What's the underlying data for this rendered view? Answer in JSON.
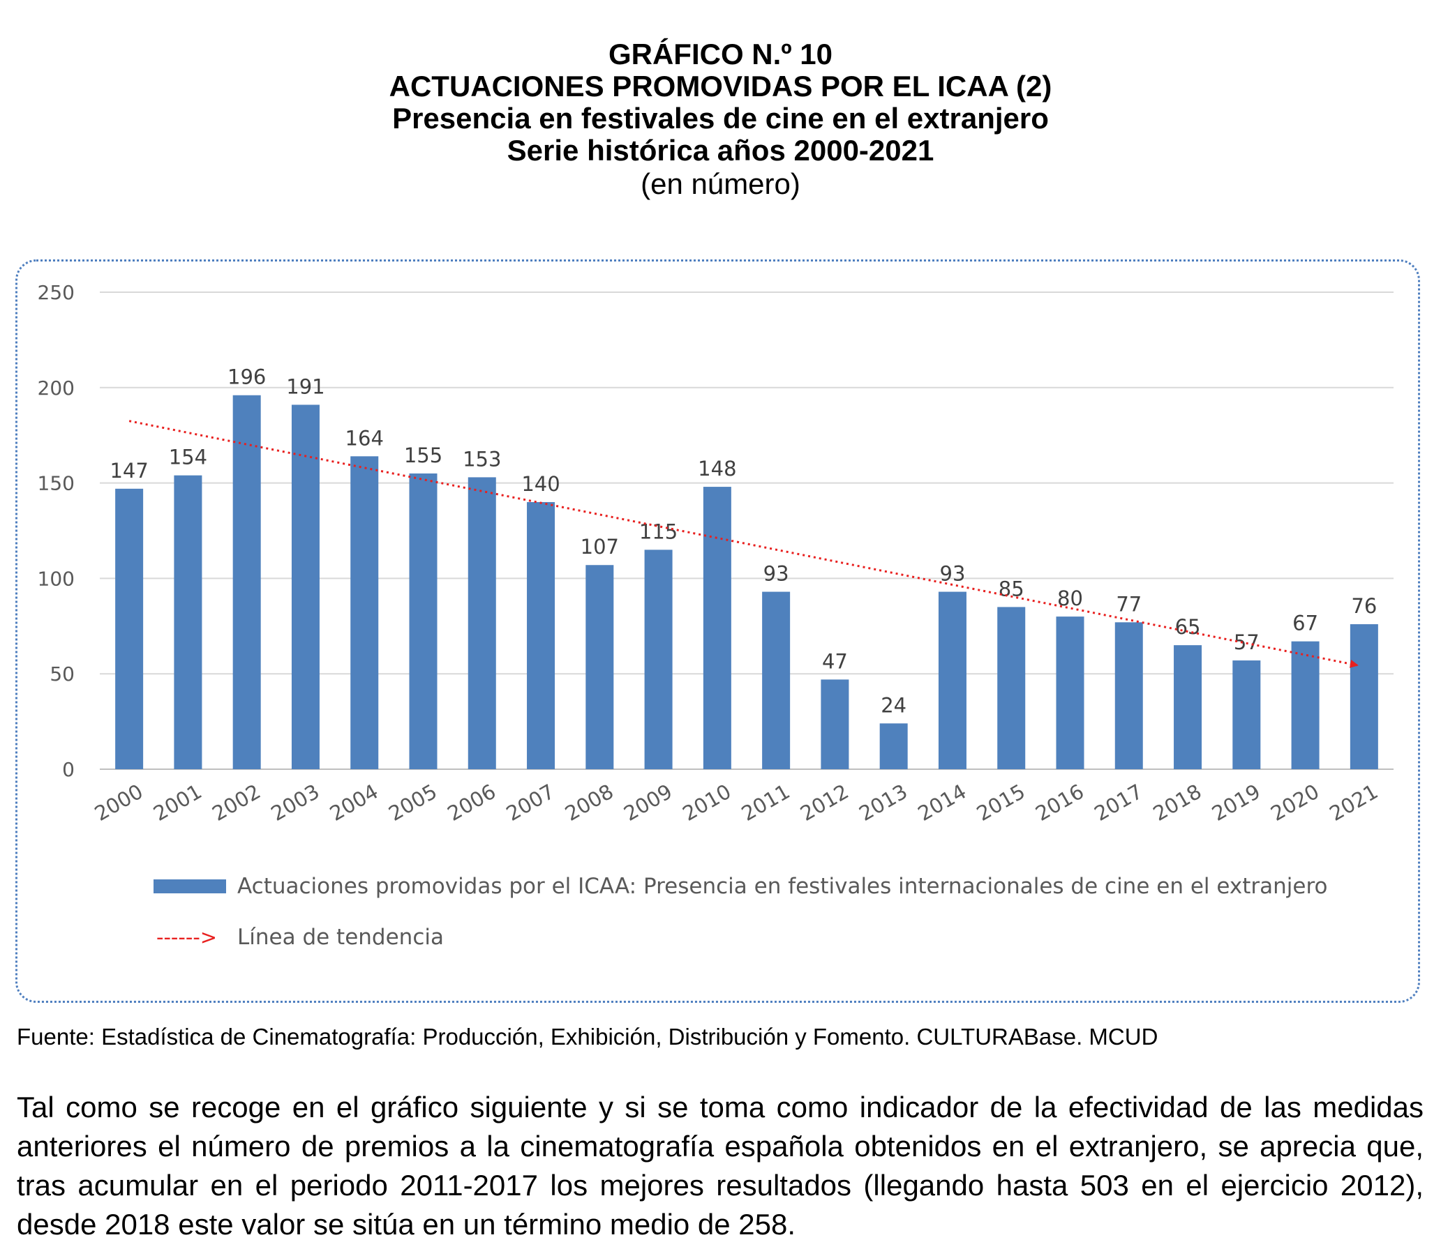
{
  "header": {
    "line1": "GRÁFICO N.º 10",
    "line2": "ACTUACIONES PROMOVIDAS POR EL ICAA (2)",
    "line3": "Presencia en festivales de cine en el extranjero",
    "line4": "Serie histórica años 2000-2021",
    "unit": "(en número)"
  },
  "chart_data": {
    "type": "bar",
    "categories": [
      "2000",
      "2001",
      "2002",
      "2003",
      "2004",
      "2005",
      "2006",
      "2007",
      "2008",
      "2009",
      "2010",
      "2011",
      "2012",
      "2013",
      "2014",
      "2015",
      "2016",
      "2017",
      "2018",
      "2019",
      "2020",
      "2021"
    ],
    "series": [
      {
        "name": "Actuaciones promovidas por el ICAA: Presencia en festivales internacionales de cine en el extranjero",
        "values": [
          147,
          154,
          196,
          191,
          164,
          155,
          153,
          140,
          107,
          115,
          148,
          93,
          47,
          24,
          93,
          85,
          80,
          77,
          65,
          57,
          67,
          76
        ],
        "color": "#4f81bd"
      }
    ],
    "trendline": {
      "name": "Línea de tendencia",
      "start": 182.5,
      "end": 54.5,
      "color": "#e8201f",
      "style": "dotted with arrowhead"
    },
    "ylim": [
      0,
      250
    ],
    "yticks": [
      0,
      50,
      100,
      150,
      200,
      250
    ],
    "grid": true,
    "legend_position": "bottom",
    "data_labels": true,
    "legend_trend_symbol": "------>"
  },
  "source": "Fuente: Estadística de Cinematografía: Producción, Exhibición, Distribución y Fomento. CULTURABase. MCUD",
  "paragraph": "Tal como se recoge en el gráfico siguiente y si se toma como indicador de la efectividad de las medidas anteriores el número de premios a la cinematografía española obtenidos en el extranjero, se aprecia que, tras acumular en el periodo 2011-2017 los mejores resultados (llegando hasta 503 en el ejercicio 2012), desde 2018 este valor se sitúa en un término medio de 258."
}
